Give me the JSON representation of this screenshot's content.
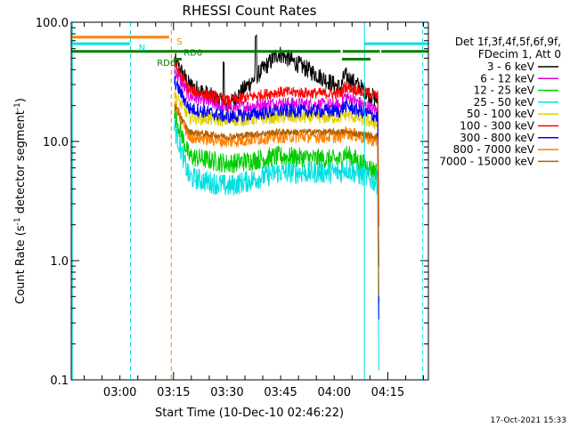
{
  "chart_data": {
    "type": "line",
    "title": "RHESSI Count Rates",
    "xlabel": "Start Time (10-Dec-10 02:46:22)",
    "ylabel_main": "Count Rate (s",
    "ylabel_sup1": "-1",
    "ylabel_mid": " detector segment",
    "ylabel_sup2": "-1",
    "ylabel_end": ")",
    "y_scale": "log",
    "ylim": [
      0.1,
      100.0
    ],
    "xlim_minutes": [
      0,
      100
    ],
    "y_ticks": [
      {
        "value": 0.1,
        "label": "0.1"
      },
      {
        "value": 1.0,
        "label": "1.0"
      },
      {
        "value": 10.0,
        "label": "10.0"
      },
      {
        "value": 100.0,
        "label": "100.0"
      }
    ],
    "x_ticks": [
      {
        "minute": 13.63,
        "label": "03:00"
      },
      {
        "minute": 28.63,
        "label": "03:15"
      },
      {
        "minute": 43.63,
        "label": "03:30"
      },
      {
        "minute": 58.63,
        "label": "03:45"
      },
      {
        "minute": 73.63,
        "label": "04:00"
      },
      {
        "minute": 88.63,
        "label": "04:15"
      }
    ],
    "legend_header": [
      "Det 1f,3f,4f,5f,6f,9f,",
      "FDecim 1, Att 0"
    ],
    "legend_placement": "right",
    "data_start_minute": 28.9,
    "data_end_minute": 85.8,
    "series": [
      {
        "name": "3 - 6 keV",
        "color": "#000000",
        "start": 48,
        "dip": 30,
        "mid": 20,
        "hump": 55,
        "pre_end": 28,
        "jump": 36,
        "end": 22,
        "noise": 0.08,
        "spike": true
      },
      {
        "name": "6 - 12 keV",
        "color": "#e000e0",
        "start": 40,
        "dip": 24,
        "mid": 19,
        "hump": 21,
        "pre_end": 20,
        "jump": 24,
        "end": 18,
        "noise": 0.06,
        "spike": false
      },
      {
        "name": "12 - 25 keV",
        "color": "#00cc00",
        "start": 17,
        "dip": 7.5,
        "mid": 6.5,
        "hump": 7.5,
        "pre_end": 7,
        "jump": 8,
        "end": 5.5,
        "noise": 0.09,
        "spike": false
      },
      {
        "name": "25 - 50 keV",
        "color": "#00e0e0",
        "start": 13,
        "dip": 5,
        "mid": 4.2,
        "hump": 5.5,
        "pre_end": 5.5,
        "jump": 6,
        "end": 4.5,
        "noise": 0.1,
        "spike": false
      },
      {
        "name": "50 - 100 keV",
        "color": "#e0d000",
        "start": 25,
        "dip": 16,
        "mid": 15,
        "hump": 16,
        "pre_end": 16,
        "jump": 17,
        "end": 14,
        "noise": 0.06,
        "spike": false
      },
      {
        "name": "100 - 300 keV",
        "color": "#ff0000",
        "start": 45,
        "dip": 27,
        "mid": 22,
        "hump": 26,
        "pre_end": 25,
        "jump": 29,
        "end": 24,
        "noise": 0.05,
        "spike": false
      },
      {
        "name": "300 - 800 keV",
        "color": "#0000ff",
        "start": 32,
        "dip": 19,
        "mid": 16,
        "hump": 18,
        "pre_end": 18,
        "jump": 20,
        "end": 16,
        "noise": 0.06,
        "spike": false
      },
      {
        "name": "800 - 7000 keV",
        "color": "#ff8000",
        "start": 20,
        "dip": 11,
        "mid": 10,
        "hump": 11,
        "pre_end": 11,
        "jump": 12,
        "end": 10,
        "noise": 0.06,
        "spike": false
      },
      {
        "name": "7000 - 15000 keV",
        "color": "#b06000",
        "start": 20,
        "dip": 12,
        "mid": 11,
        "hump": 12,
        "pre_end": 12,
        "jump": 12,
        "end": 11,
        "noise": 0.03,
        "spike": false
      }
    ],
    "annotations": {
      "S": {
        "label": "S",
        "color": "#ff8000",
        "minute": 28.0,
        "y": 70
      },
      "N": {
        "label": "N",
        "color": "#00e0e0",
        "minute": 17.4,
        "y": 62
      },
      "RD0": {
        "label": "RD0",
        "color": "#008000",
        "minute": 30.0,
        "y": 56
      },
      "RD6": {
        "label": "RD6",
        "color": "#008000",
        "minute": 22.5,
        "y": 46
      }
    },
    "status_bars": [
      {
        "name": "S",
        "color": "#ff8000",
        "y": 75,
        "segments": [
          [
            0,
            27.4
          ]
        ]
      },
      {
        "name": "N",
        "color": "#00e0e0",
        "y": 66,
        "segments": [
          [
            0,
            16.4
          ],
          [
            82.2,
            100
          ]
        ]
      },
      {
        "name": "RD",
        "color": "#008000",
        "y": 57,
        "segments": [
          [
            0,
            75.4
          ],
          [
            76.0,
            86.4
          ],
          [
            86.8,
            100
          ]
        ]
      },
      {
        "name": "RD6",
        "color": "#008000",
        "y": 49,
        "segments": [
          [
            28.9,
            30.9
          ],
          [
            75.8,
            83.8
          ]
        ]
      }
    ],
    "vertical_markers": [
      {
        "name": "cyan-solid-left",
        "minute": 0.3,
        "color": "#00e0e0",
        "dashed": false
      },
      {
        "name": "cyan-dashed-1",
        "minute": 16.6,
        "color": "#00e0e0",
        "dashed": true
      },
      {
        "name": "orange-dashed",
        "minute": 28.0,
        "color": "#ff8000",
        "dashed": true
      },
      {
        "name": "cyan-solid-2",
        "minute": 82.1,
        "color": "#00e0e0",
        "dashed": false
      },
      {
        "name": "cyan-dashed-2",
        "minute": 98.4,
        "color": "#00e0e0",
        "dashed": true
      }
    ]
  },
  "footer_timestamp": "17-Oct-2021 15:33"
}
